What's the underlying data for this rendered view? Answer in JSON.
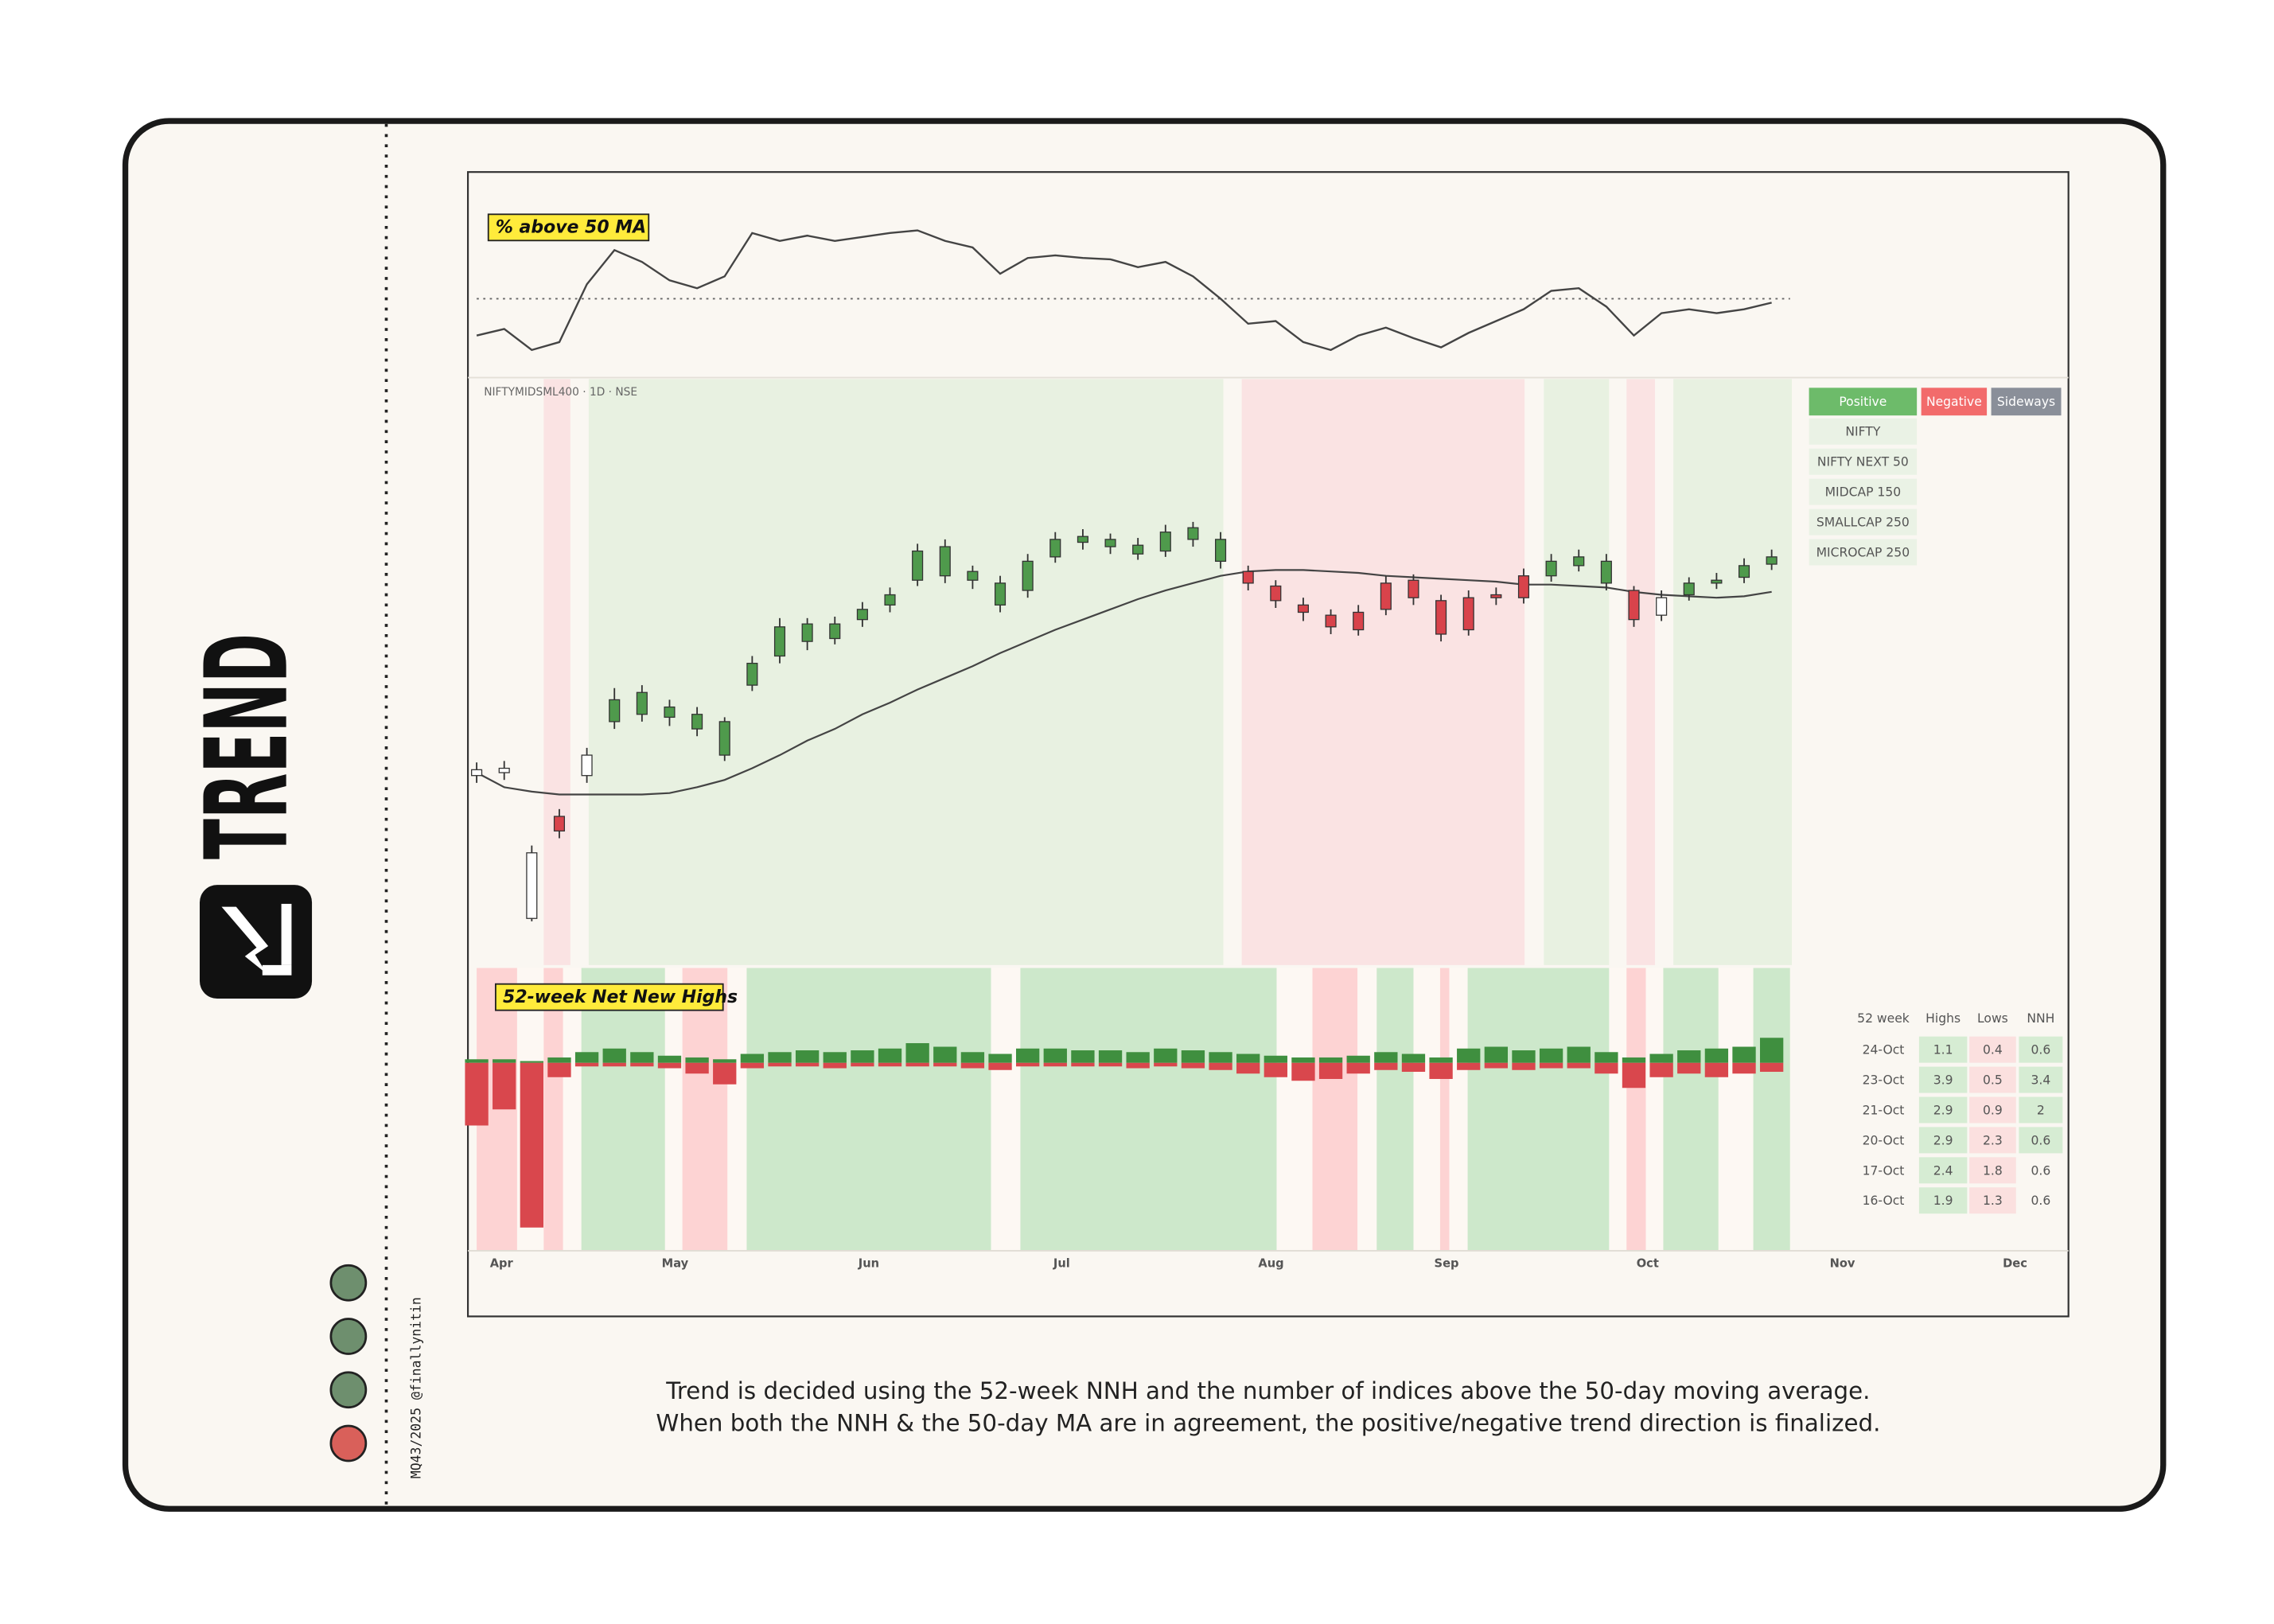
{
  "side_title": "TREND",
  "credit": "MQ43/2025 @finallynitin",
  "status_dots": [
    "#6e8f6e",
    "#6e8f6e",
    "#6e8f6e",
    "#d9605a"
  ],
  "caption": [
    "Trend is decided using the 52-week NNH and the number of indices above the 50-day moving average.",
    "When both the NNH & the 50-day MA are in agreement, the positive/negative trend direction is finalized."
  ],
  "chart_data": [
    {
      "type": "line",
      "title": "% above 50 MA",
      "x": [
        0,
        3,
        6,
        9,
        12,
        15,
        18,
        21,
        24,
        27,
        30,
        33,
        36,
        39,
        42,
        45,
        48,
        51,
        54,
        57,
        60,
        63,
        66,
        69,
        72,
        75,
        78,
        81,
        84,
        87,
        90,
        93,
        96,
        99,
        102,
        105,
        108,
        111,
        114,
        117,
        120,
        123,
        126,
        129,
        132,
        135,
        138,
        141
      ],
      "values": [
        22,
        27,
        11,
        17,
        61,
        87,
        78,
        64,
        58,
        67,
        100,
        94,
        98,
        94,
        97,
        100,
        102,
        94,
        89,
        69,
        81,
        83,
        81,
        80,
        74,
        78,
        67,
        50,
        31,
        33,
        17,
        11,
        22,
        28,
        20,
        13,
        24,
        33,
        42,
        56,
        58,
        44,
        22,
        39,
        42,
        39,
        42,
        47
      ],
      "color": "#444444",
      "reference": 50,
      "xlim": [
        0,
        173
      ],
      "ylim": [
        0,
        122
      ]
    },
    {
      "type": "candlestick",
      "title": "NIFTYMIDSML400 · 1D · NSE",
      "x": [
        0,
        3,
        6,
        9,
        12,
        15,
        18,
        21,
        24,
        27,
        30,
        33,
        36,
        39,
        42,
        45,
        48,
        51,
        54,
        57,
        60,
        63,
        66,
        69,
        72,
        75,
        78,
        81,
        84,
        87,
        90,
        93,
        96,
        99,
        102,
        105,
        108,
        111,
        114,
        117,
        120,
        123,
        126,
        129,
        132,
        135,
        138,
        141
      ],
      "open": [
        128,
        130,
        30,
        100,
        128,
        165,
        185,
        175,
        170,
        165,
        190,
        210,
        232,
        222,
        235,
        245,
        262,
        285,
        268,
        260,
        255,
        278,
        292,
        290,
        286,
        282,
        298,
        290,
        268,
        258,
        245,
        238,
        228,
        242,
        262,
        248,
        228,
        252,
        250,
        265,
        272,
        275,
        255,
        238,
        252,
        260,
        264,
        273
      ],
      "high": [
        137,
        138,
        80,
        105,
        147,
        188,
        190,
        180,
        175,
        168,
        210,
        236,
        236,
        237,
        247,
        257,
        287,
        290,
        272,
        265,
        280,
        295,
        297,
        294,
        291,
        300,
        302,
        295,
        272,
        262,
        250,
        242,
        245,
        265,
        266,
        252,
        255,
        257,
        270,
        280,
        283,
        280,
        258,
        255,
        264,
        267,
        277,
        283
      ],
      "low": [
        123,
        125,
        28,
        85,
        123,
        160,
        165,
        162,
        155,
        138,
        186,
        205,
        214,
        218,
        230,
        240,
        258,
        260,
        256,
        240,
        250,
        274,
        283,
        280,
        276,
        278,
        285,
        270,
        255,
        243,
        234,
        225,
        224,
        238,
        245,
        220,
        224,
        245,
        246,
        261,
        268,
        255,
        230,
        234,
        248,
        256,
        260,
        269
      ],
      "close": [
        132,
        133,
        75,
        90,
        142,
        180,
        170,
        168,
        160,
        142,
        205,
        230,
        220,
        232,
        242,
        252,
        282,
        265,
        262,
        245,
        275,
        290,
        288,
        285,
        280,
        295,
        290,
        275,
        260,
        248,
        240,
        230,
        240,
        260,
        250,
        225,
        250,
        250,
        265,
        275,
        278,
        260,
        235,
        250,
        260,
        262,
        272,
        278
      ],
      "ma": [
        130,
        120,
        117,
        115,
        115,
        115,
        115,
        116,
        120,
        125,
        133,
        142,
        152,
        160,
        170,
        178,
        187,
        195,
        203,
        212,
        220,
        228,
        235,
        242,
        249,
        255,
        260,
        265,
        268,
        269,
        269,
        268,
        267,
        265,
        264,
        263,
        262,
        261,
        259,
        259,
        258,
        257,
        254,
        252,
        251,
        250,
        251,
        254
      ],
      "ma_color": "#444444",
      "candle_colors": {
        "Positive": "#4f9a4c",
        "Negative": "#d8434b"
      },
      "neutral_color": "#ffffff",
      "band_colors": {
        "Positive": "#e8f1e1",
        "Negative": "#fae3e3"
      },
      "bands": [
        {
          "trend": "Negative",
          "start": 7.3,
          "end": 10.2
        },
        {
          "trend": "Positive",
          "start": 12.2,
          "end": 81.3
        },
        {
          "trend": "Negative",
          "start": 83.3,
          "end": 114.1
        },
        {
          "trend": "Positive",
          "start": 116.2,
          "end": 123.3
        },
        {
          "trend": "Negative",
          "start": 125.2,
          "end": 128.3
        },
        {
          "trend": "Positive",
          "start": 130.3,
          "end": 143.2
        }
      ],
      "legend": [
        {
          "name": "Positive",
          "color": "#6dbb6a"
        },
        {
          "name": "Negative",
          "color": "#f26b6b"
        },
        {
          "name": "Sideways",
          "color": "#8a8f99"
        }
      ],
      "indices": [
        "NIFTY",
        "NIFTY NEXT 50",
        "MIDCAP 150",
        "SMALLCAP 250",
        "MICROCAP 250"
      ],
      "xlim": [
        0,
        173
      ],
      "ylim": [
        0,
        400
      ]
    },
    {
      "type": "bar",
      "title": "52-week Net New Highs",
      "x": [
        0,
        3,
        6,
        9,
        12,
        15,
        18,
        21,
        24,
        27,
        30,
        33,
        36,
        39,
        42,
        45,
        48,
        51,
        54,
        57,
        60,
        63,
        66,
        69,
        72,
        75,
        78,
        81,
        84,
        87,
        90,
        93,
        96,
        99,
        102,
        105,
        108,
        111,
        114,
        117,
        120,
        123,
        126,
        129,
        132,
        135,
        138,
        141
      ],
      "series": [
        {
          "color": "#3f8f3f",
          "values": [
            0.2,
            0.2,
            0.1,
            0.3,
            0.6,
            0.8,
            0.6,
            0.4,
            0.3,
            0.2,
            0.5,
            0.6,
            0.7,
            0.6,
            0.7,
            0.8,
            1.1,
            0.9,
            0.6,
            0.5,
            0.8,
            0.8,
            0.7,
            0.7,
            0.6,
            0.8,
            0.7,
            0.6,
            0.5,
            0.4,
            0.3,
            0.3,
            0.4,
            0.6,
            0.5,
            0.3,
            0.8,
            0.9,
            0.7,
            0.8,
            0.9,
            0.6,
            0.3,
            0.5,
            0.7,
            0.8,
            0.9,
            1.4
          ]
        },
        {
          "color": "#d9474d",
          "values": [
            -3.5,
            -2.6,
            -9.2,
            -0.8,
            -0.2,
            -0.2,
            -0.2,
            -0.3,
            -0.6,
            -1.2,
            -0.3,
            -0.2,
            -0.2,
            -0.3,
            -0.2,
            -0.2,
            -0.2,
            -0.2,
            -0.3,
            -0.4,
            -0.2,
            -0.2,
            -0.2,
            -0.2,
            -0.3,
            -0.2,
            -0.3,
            -0.4,
            -0.6,
            -0.8,
            -1.0,
            -0.9,
            -0.6,
            -0.4,
            -0.5,
            -0.9,
            -0.4,
            -0.3,
            -0.4,
            -0.3,
            -0.3,
            -0.6,
            -1.4,
            -0.8,
            -0.6,
            -0.8,
            -0.6,
            -0.5
          ]
        }
      ],
      "band_colors": {
        "Positive": "#cde8cb",
        "Negative": "#fdd3d3"
      },
      "bands": [
        {
          "trend": "Negative",
          "start": 0,
          "end": 4.4
        },
        {
          "trend": "Negative",
          "start": 7.3,
          "end": 9.4
        },
        {
          "trend": "Positive",
          "start": 11.4,
          "end": 20.5
        },
        {
          "trend": "Negative",
          "start": 22.4,
          "end": 27.3
        },
        {
          "trend": "Positive",
          "start": 29.4,
          "end": 56.0
        },
        {
          "trend": "Positive",
          "start": 59.2,
          "end": 87.1
        },
        {
          "trend": "Negative",
          "start": 91.0,
          "end": 95.9
        },
        {
          "trend": "Positive",
          "start": 98.0,
          "end": 102.0
        },
        {
          "trend": "Negative",
          "start": 104.9,
          "end": 105.9
        },
        {
          "trend": "Positive",
          "start": 107.9,
          "end": 123.3
        },
        {
          "trend": "Negative",
          "start": 125.2,
          "end": 127.3
        },
        {
          "trend": "Positive",
          "start": 129.2,
          "end": 135.2
        },
        {
          "trend": "Positive",
          "start": 139.0,
          "end": 143.0
        }
      ],
      "table": {
        "columns": [
          "52 week",
          "Highs",
          "Lows",
          "NNH"
        ],
        "rows": [
          [
            "24-Oct",
            1.1,
            0.4,
            0.6
          ],
          [
            "23-Oct",
            3.9,
            0.5,
            3.4
          ],
          [
            "21-Oct",
            2.9,
            0.9,
            2
          ],
          [
            "20-Oct",
            2.9,
            2.3,
            0.6
          ],
          [
            "17-Oct",
            2.4,
            1.8,
            0.6
          ],
          [
            "16-Oct",
            1.9,
            1.3,
            0.6
          ]
        ],
        "nnh_highlight": [
          true,
          true,
          true,
          true,
          false,
          false
        ]
      },
      "xlim": [
        0,
        173
      ],
      "ylim": [
        -10.5,
        5.3
      ],
      "xticks": [
        {
          "value": 2.7,
          "label": "Apr"
        },
        {
          "value": 21.6,
          "label": "May"
        },
        {
          "value": 42.7,
          "label": "Jun"
        },
        {
          "value": 63.7,
          "label": "Jul"
        },
        {
          "value": 86.5,
          "label": "Aug"
        },
        {
          "value": 105.6,
          "label": "Sep"
        },
        {
          "value": 127.5,
          "label": "Oct"
        },
        {
          "value": 148.7,
          "label": "Nov"
        },
        {
          "value": 167.5,
          "label": "Dec"
        }
      ]
    }
  ]
}
